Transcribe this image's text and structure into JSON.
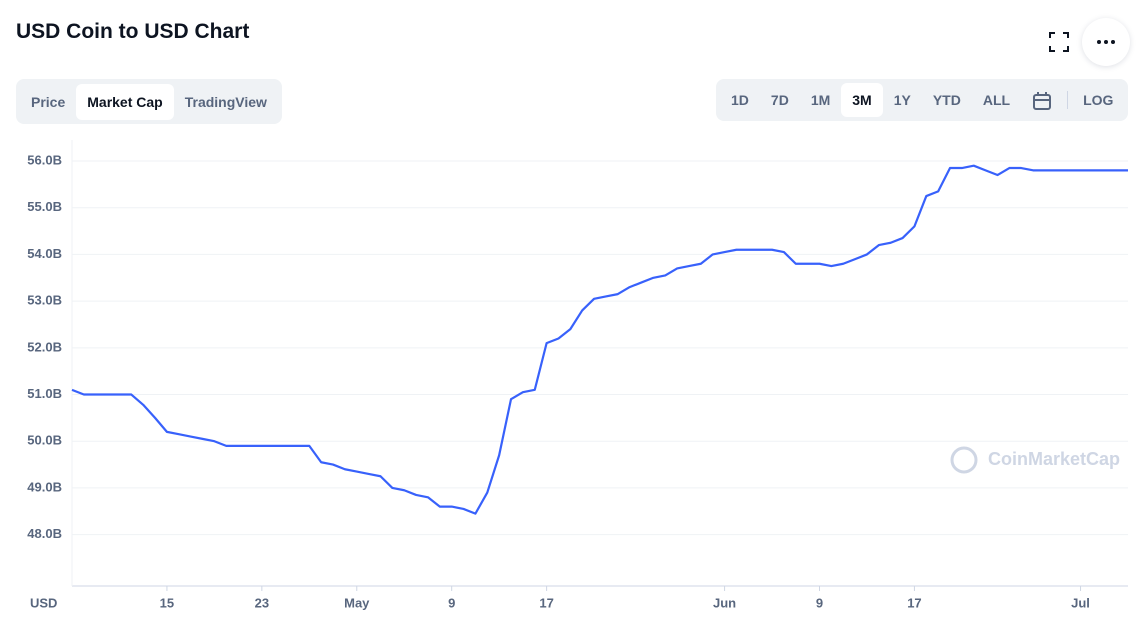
{
  "header": {
    "title": "USD Coin to USD Chart"
  },
  "tabs": [
    "Price",
    "Market Cap",
    "TradingView"
  ],
  "ranges": [
    "1D",
    "7D",
    "1M",
    "3M",
    "1Y",
    "YTD",
    "ALL"
  ],
  "log_button": "LOG",
  "chart_data": {
    "type": "line",
    "currency_label": "USD",
    "watermark": "CoinMarketCap",
    "x": [
      0,
      1,
      2,
      3,
      4,
      5,
      6,
      7,
      8,
      9,
      10,
      11,
      12,
      13,
      14,
      15,
      16,
      17,
      18,
      19,
      20,
      21,
      22,
      23,
      24,
      25,
      26,
      27,
      28,
      29,
      30,
      31,
      32,
      33,
      34,
      35,
      36,
      37,
      38,
      39,
      40,
      41,
      42,
      43,
      44,
      45,
      46,
      47,
      48,
      49,
      50,
      51,
      52,
      53,
      54,
      55,
      56,
      57,
      58,
      59,
      60,
      61,
      62,
      63,
      64,
      65,
      66,
      67,
      68,
      69,
      70,
      71,
      72,
      73,
      74,
      75,
      76,
      77,
      78,
      79,
      80,
      81,
      82,
      83,
      84,
      85,
      86,
      87,
      88,
      89
    ],
    "values": [
      51.1,
      51.0,
      51.0,
      51.0,
      51.0,
      51.0,
      50.78,
      50.5,
      50.2,
      50.15,
      50.1,
      50.05,
      50.0,
      49.9,
      49.9,
      49.9,
      49.9,
      49.9,
      49.9,
      49.9,
      49.9,
      49.55,
      49.5,
      49.4,
      49.35,
      49.3,
      49.25,
      49.0,
      48.95,
      48.85,
      48.8,
      48.6,
      48.6,
      48.55,
      48.45,
      48.9,
      49.7,
      50.9,
      51.05,
      51.1,
      52.1,
      52.2,
      52.4,
      52.8,
      53.05,
      53.1,
      53.15,
      53.3,
      53.4,
      53.5,
      53.55,
      53.7,
      53.75,
      53.8,
      54.0,
      54.05,
      54.1,
      54.1,
      54.1,
      54.1,
      54.05,
      53.8,
      53.8,
      53.8,
      53.75,
      53.8,
      53.9,
      54.0,
      54.2,
      54.25,
      54.35,
      54.6,
      55.25,
      55.35,
      55.85,
      55.85,
      55.9,
      55.8,
      55.7,
      55.85,
      55.85,
      55.8,
      55.8,
      55.8,
      55.8,
      55.8,
      55.8,
      55.8,
      55.8,
      55.8
    ],
    "color": "#3861fb",
    "xlim": [
      0,
      89
    ],
    "xticks": [
      {
        "value": 8,
        "label": "15"
      },
      {
        "value": 16,
        "label": "23"
      },
      {
        "value": 24,
        "label": "May"
      },
      {
        "value": 32,
        "label": "9"
      },
      {
        "value": 40,
        "label": "17"
      },
      {
        "value": 55,
        "label": "Jun"
      },
      {
        "value": 63,
        "label": "9"
      },
      {
        "value": 71,
        "label": "17"
      },
      {
        "value": 85,
        "label": "Jul"
      }
    ],
    "ylim": [
      46.9,
      56.45
    ],
    "yticks": [
      {
        "value": 48,
        "label": "48.0B"
      },
      {
        "value": 49,
        "label": "49.0B"
      },
      {
        "value": 50,
        "label": "50.0B"
      },
      {
        "value": 51,
        "label": "51.0B"
      },
      {
        "value": 52,
        "label": "52.0B"
      },
      {
        "value": 53,
        "label": "53.0B"
      },
      {
        "value": 54,
        "label": "54.0B"
      },
      {
        "value": 55,
        "label": "55.0B"
      },
      {
        "value": 56,
        "label": "56.0B"
      }
    ],
    "grid": true
  }
}
